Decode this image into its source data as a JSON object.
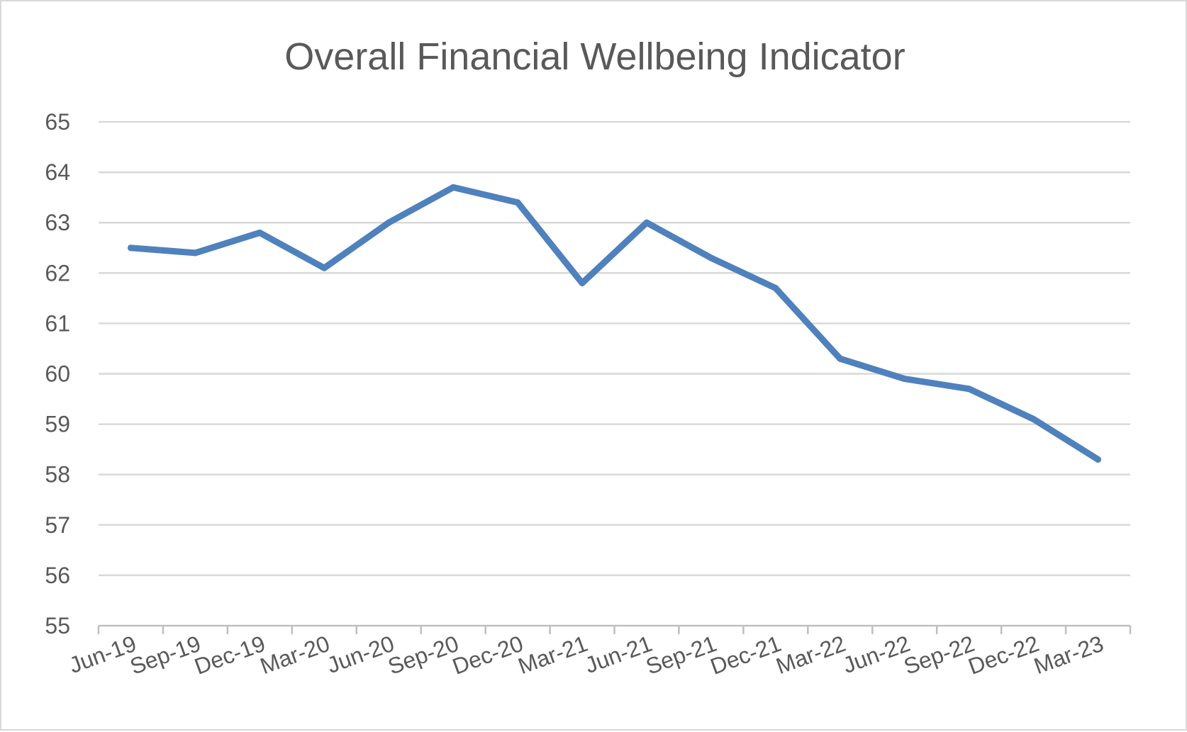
{
  "chart_data": {
    "type": "line",
    "title": "Overall Financial Wellbeing Indicator",
    "xlabel": "",
    "ylabel": "",
    "categories": [
      "Jun-19",
      "Sep-19",
      "Dec-19",
      "Mar-20",
      "Jun-20",
      "Sep-20",
      "Dec-20",
      "Mar-21",
      "Jun-21",
      "Sep-21",
      "Dec-21",
      "Mar-22",
      "Jun-22",
      "Sep-22",
      "Dec-22",
      "Mar-23"
    ],
    "series": [
      {
        "values": [
          62.5,
          62.4,
          62.8,
          62.1,
          63.0,
          63.7,
          63.4,
          61.8,
          63.0,
          62.3,
          61.7,
          60.3,
          59.9,
          59.7,
          59.1,
          58.3
        ],
        "color": "#4f81bd"
      }
    ],
    "ylim": [
      55,
      65
    ],
    "yticks": [
      55,
      56,
      57,
      58,
      59,
      60,
      61,
      62,
      63,
      64,
      65
    ],
    "grid": true,
    "legend": "none"
  }
}
